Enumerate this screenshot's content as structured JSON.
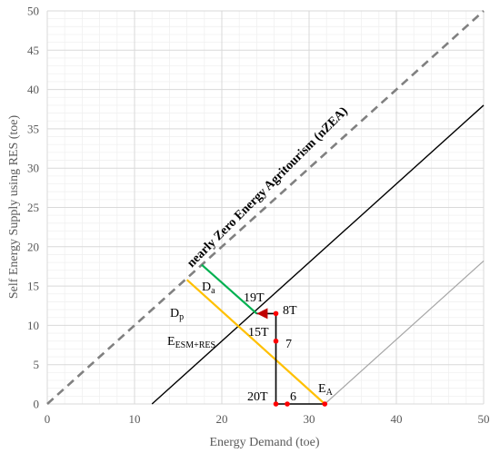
{
  "chart_data": {
    "type": "line",
    "xlabel": "Energy Demand (toe)",
    "ylabel": "Self Energy Supply using RES (toe)",
    "xlim": [
      0,
      50
    ],
    "ylim": [
      0,
      50
    ],
    "x_ticks": [
      "0",
      "10",
      "20",
      "30",
      "40",
      "50"
    ],
    "y_ticks": [
      "0",
      "5",
      "10",
      "15",
      "20",
      "25",
      "30",
      "35",
      "40",
      "45",
      "50"
    ],
    "grid": true,
    "minor_grid": true,
    "colors": {
      "nzea": "#808080",
      "parallel": "#000000",
      "parallel_gray": "#a6a6a6",
      "esm": "#ffc000",
      "da": "#00b050",
      "point": "#ff0000",
      "arrow": "#c00000",
      "grid": "#d9d9d9",
      "minor_grid": "#f0f0f0"
    },
    "series": [
      {
        "name": "nearly Zero Energy Agritourism (nZEA)",
        "style": "dashed",
        "x": [
          0,
          50
        ],
        "y": [
          0,
          50
        ]
      },
      {
        "style": "solid",
        "x": [
          12,
          50
        ],
        "y": [
          0,
          38
        ]
      },
      {
        "style": "solid-gray",
        "x": [
          31.8,
          50
        ],
        "y": [
          0,
          18.2
        ]
      },
      {
        "style": "esm",
        "x": [
          16,
          31.8
        ],
        "y": [
          15.8,
          0
        ]
      },
      {
        "style": "da",
        "x": [
          17.7,
          24
        ],
        "y": [
          17.7,
          11.5
        ]
      }
    ],
    "path_segments": [
      {
        "x": [
          31.8,
          26.2
        ],
        "y": [
          0,
          0
        ]
      },
      {
        "x": [
          26.2,
          26.2
        ],
        "y": [
          0,
          11.5
        ]
      },
      {
        "x": [
          26.2,
          24
        ],
        "y": [
          11.5,
          11.5
        ]
      }
    ],
    "points": [
      {
        "x": 31.8,
        "y": 0
      },
      {
        "x": 27.5,
        "y": 0
      },
      {
        "x": 26.2,
        "y": 0
      },
      {
        "x": 26.2,
        "y": 8
      },
      {
        "x": 26.2,
        "y": 11.5
      },
      {
        "x": 24,
        "y": 11.5
      }
    ],
    "annotations": {
      "nzea_label": "nearly Zero Energy Agritourism (nZEA)",
      "da_main": "D",
      "da_sub": "a",
      "dp_main": "D",
      "dp_sub": "p",
      "esm_main": "E",
      "esm_sub": "ESM+RES",
      "ea_main": "E",
      "ea_sub": "A",
      "p19": "19T",
      "p8": "8T",
      "p15": "15T",
      "p7": "7",
      "p20": "20T",
      "p6": "6"
    }
  }
}
